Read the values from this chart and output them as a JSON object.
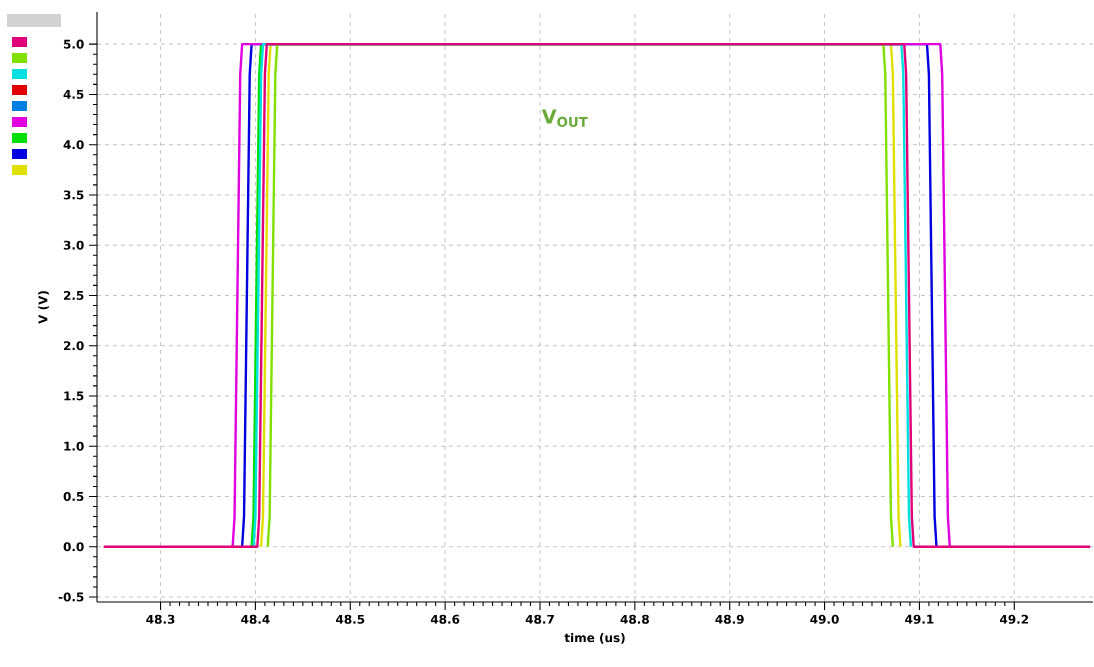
{
  "chart_data": {
    "type": "line",
    "xlabel": "time (us)",
    "ylabel": "V (V)",
    "annotations": [
      "V$_{OUT}$"
    ],
    "xlim": [
      48.233,
      49.283
    ],
    "ylim": [
      -0.55,
      5.32
    ],
    "xticks": [
      48.3,
      48.4,
      48.5,
      48.6,
      48.7,
      48.8,
      48.9,
      {
        "value": 49.0,
        "label": "49.0"
      },
      49.1,
      49.2
    ],
    "yticks": [
      {
        "value": -0.5,
        "label": "-0.5"
      },
      {
        "value": 0,
        "label": "0.0"
      },
      0.5,
      {
        "value": 1,
        "label": "1.0"
      },
      1.5,
      {
        "value": 2,
        "label": "2.0"
      },
      2.5,
      {
        "value": 3,
        "label": "3.0"
      },
      3.5,
      {
        "value": 4,
        "label": "4.0"
      },
      4.5,
      {
        "value": 5,
        "label": "5.0"
      }
    ],
    "grid": true,
    "marker": "none",
    "line_style": "solid",
    "series": [
      {
        "color": "#e0007a",
        "x": [
          48.24,
          48.402,
          48.404,
          48.41,
          48.412,
          49.084,
          49.086,
          49.092,
          49.094,
          49.28
        ],
        "values": [
          0,
          0,
          0.3,
          4.7,
          5,
          5,
          4.7,
          0.3,
          0,
          0
        ]
      },
      {
        "color": "#80e000",
        "x": [
          48.413,
          48.415,
          48.421,
          48.423,
          49.062,
          49.064,
          49.07,
          49.072
        ],
        "values": [
          0,
          0.3,
          4.7,
          5,
          5,
          4.7,
          0.3,
          0
        ]
      },
      {
        "color": "#00e0e0",
        "x": [
          48.398,
          48.4,
          48.406,
          48.408,
          49.081,
          49.083,
          49.089,
          49.091
        ],
        "values": [
          0,
          0.3,
          4.7,
          5,
          5,
          4.7,
          0.3,
          0
        ]
      },
      {
        "color": "#e00000"
      },
      {
        "color": "#0080e0"
      },
      {
        "color": "#e000e0",
        "x": [
          48.376,
          48.378,
          48.384,
          48.386,
          49.122,
          49.124,
          49.13,
          49.132
        ],
        "values": [
          0,
          0.3,
          4.7,
          5,
          5,
          4.7,
          0.3,
          0
        ]
      },
      {
        "color": "#00e000",
        "x": [
          48.396,
          48.398,
          48.404,
          48.406
        ],
        "values": [
          0,
          0.3,
          4.7,
          5
        ]
      },
      {
        "color": "#0000e0",
        "x": [
          48.386,
          48.388,
          48.394,
          48.396,
          49.108,
          49.11,
          49.116,
          49.118
        ],
        "values": [
          0,
          0.3,
          4.7,
          5,
          5,
          4.7,
          0.3,
          0
        ]
      },
      {
        "color": "#e0e000",
        "x": [
          48.406,
          48.408,
          48.414,
          48.416,
          49.07,
          49.072,
          49.078,
          49.08
        ],
        "values": [
          0,
          0.3,
          4.7,
          5,
          5,
          4.7,
          0.3,
          0
        ]
      }
    ]
  }
}
